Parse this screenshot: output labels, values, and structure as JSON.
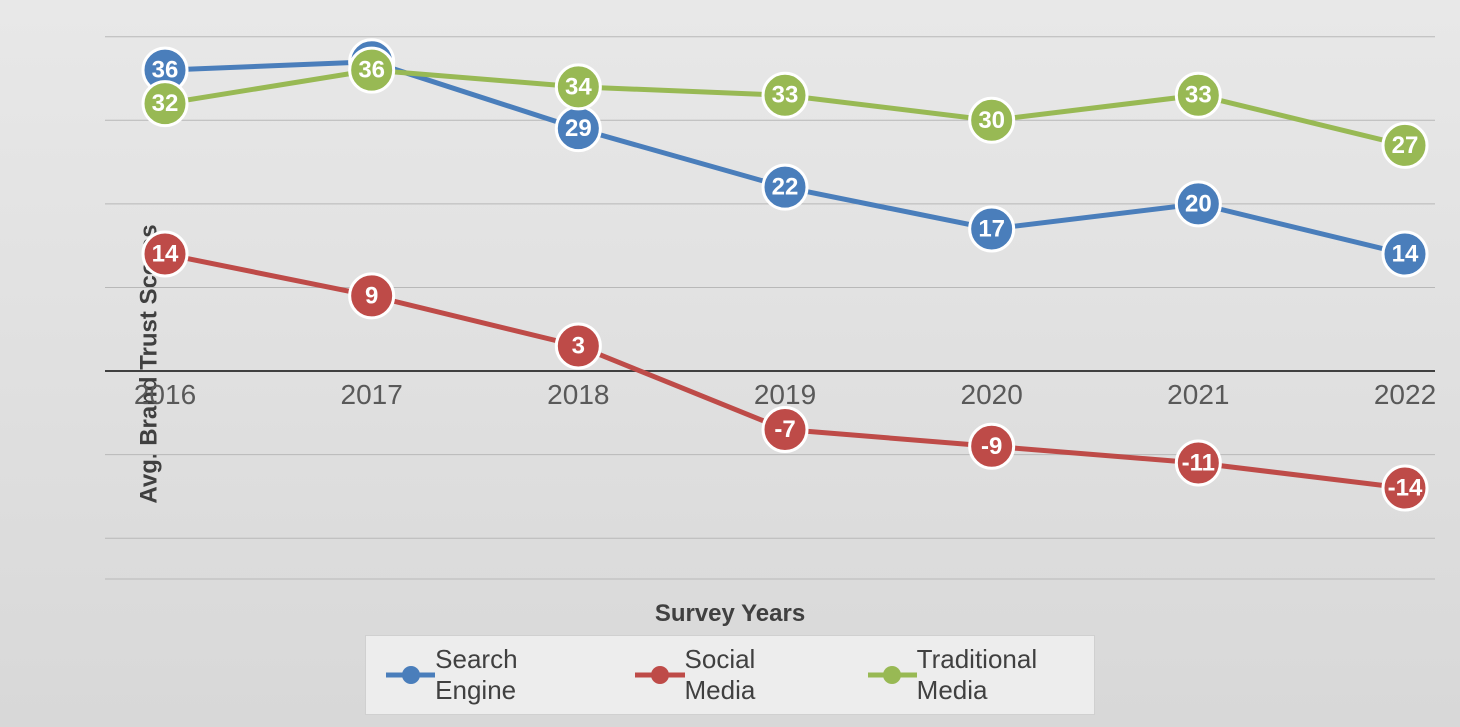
{
  "chart": {
    "type": "line",
    "x_axis_label": "Survey Years",
    "y_axis_label": "Avg. Brand Trust Scores",
    "categories": [
      "2016",
      "2017",
      "2018",
      "2019",
      "2020",
      "2021",
      "2022"
    ],
    "y_min": -25,
    "y_max": 42,
    "y_gridlines": [
      -20,
      -10,
      0,
      10,
      20,
      30,
      40
    ],
    "zero_line_value": 0,
    "x_tick_y_value": 0,
    "background_gradient_top": "#e8e8e8",
    "background_gradient_bottom": "#d8d8d8",
    "grid_color": "#b8b8b8",
    "zero_line_color": "#404040",
    "bottom_border_color": "#b8b8b8",
    "axis_label_fontsize": 24,
    "axis_label_color": "#404040",
    "tick_fontsize": 28,
    "tick_color": "#595959",
    "line_width": 5,
    "marker_radius": 22,
    "marker_stroke_width": 3,
    "marker_stroke_color": "#ffffff",
    "data_label_fontsize": 24,
    "data_label_fontweight": "bold",
    "data_label_color": "#ffffff",
    "legend_bg": "#ededed",
    "legend_border": "#d0d0d0",
    "legend_fontsize": 26,
    "series": [
      {
        "name": "Search Engine",
        "color": "#4a7ebb",
        "values": [
          36,
          37,
          29,
          22,
          17,
          20,
          14
        ]
      },
      {
        "name": "Social Media",
        "color": "#be4b48",
        "values": [
          14,
          9,
          3,
          -7,
          -9,
          -11,
          -14
        ]
      },
      {
        "name": "Traditional Media",
        "color": "#98b954",
        "values": [
          32,
          36,
          34,
          33,
          30,
          33,
          27
        ]
      }
    ]
  }
}
